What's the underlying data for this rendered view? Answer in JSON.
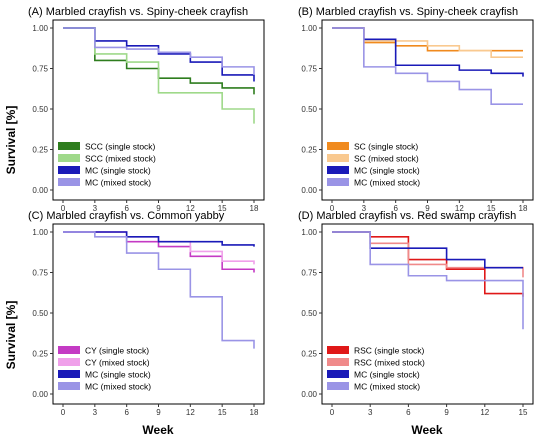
{
  "figure": {
    "ylabel": "Survival [%]",
    "xlabel": "Week"
  },
  "chart_data": [
    {
      "type": "line",
      "step": true,
      "title": "(A) Marbled crayfish vs. Spiny-cheek crayfish",
      "xlim": [
        0,
        18
      ],
      "ylim": [
        0,
        1
      ],
      "xticks": [
        0,
        3,
        6,
        9,
        12,
        15,
        18
      ],
      "yticks": [
        "0.00",
        "0.25",
        "0.50",
        "0.75",
        "1.00"
      ],
      "legend_position": "bottom-left",
      "series": [
        {
          "name": "SCC (single stock)",
          "color": "#2e7d1e",
          "x": [
            0,
            3,
            6,
            9,
            12,
            15,
            18
          ],
          "y": [
            1.0,
            0.8,
            0.75,
            0.69,
            0.66,
            0.63,
            0.59
          ]
        },
        {
          "name": "SCC (mixed stock)",
          "color": "#9fd98a",
          "x": [
            0,
            3,
            6,
            9,
            12,
            15,
            18
          ],
          "y": [
            1.0,
            0.84,
            0.79,
            0.6,
            0.6,
            0.5,
            0.41
          ]
        },
        {
          "name": "MC (single stock)",
          "color": "#1a1ab8",
          "x": [
            0,
            3,
            6,
            9,
            12,
            15,
            18
          ],
          "y": [
            1.0,
            0.92,
            0.89,
            0.84,
            0.79,
            0.71,
            0.67
          ]
        },
        {
          "name": "MC (mixed stock)",
          "color": "#9a94e6",
          "x": [
            0,
            3,
            6,
            9,
            12,
            15,
            18
          ],
          "y": [
            1.0,
            0.88,
            0.87,
            0.85,
            0.82,
            0.76,
            0.71
          ]
        }
      ]
    },
    {
      "type": "line",
      "step": true,
      "title": "(B) Marbled crayfish vs. Spiny-cheek crayfish",
      "xlim": [
        0,
        18
      ],
      "ylim": [
        0,
        1
      ],
      "xticks": [
        0,
        3,
        6,
        9,
        12,
        15,
        18
      ],
      "yticks": [
        "0.00",
        "0.25",
        "0.50",
        "0.75",
        "1.00"
      ],
      "legend_position": "bottom-left",
      "series": [
        {
          "name": "SC (single stock)",
          "color": "#f08a1e",
          "x": [
            0,
            3,
            6,
            9,
            12,
            15,
            18
          ],
          "y": [
            1.0,
            0.91,
            0.89,
            0.86,
            0.86,
            0.86,
            0.86
          ]
        },
        {
          "name": "SC (mixed stock)",
          "color": "#f9c990",
          "x": [
            0,
            3,
            6,
            9,
            12,
            15,
            18
          ],
          "y": [
            1.0,
            0.92,
            0.92,
            0.89,
            0.86,
            0.82,
            0.82
          ]
        },
        {
          "name": "MC (single stock)",
          "color": "#1a1ab8",
          "x": [
            0,
            3,
            6,
            9,
            12,
            15,
            18
          ],
          "y": [
            1.0,
            0.93,
            0.77,
            0.77,
            0.74,
            0.72,
            0.7
          ]
        },
        {
          "name": "MC (mixed stock)",
          "color": "#9a94e6",
          "x": [
            0,
            3,
            6,
            9,
            12,
            15,
            18
          ],
          "y": [
            1.0,
            0.76,
            0.72,
            0.67,
            0.62,
            0.53,
            0.53
          ]
        }
      ]
    },
    {
      "type": "line",
      "step": true,
      "title": "(C) Marbled crayfish vs. Common yabby",
      "xlim": [
        0,
        18
      ],
      "ylim": [
        0,
        1
      ],
      "xticks": [
        0,
        3,
        6,
        9,
        12,
        15,
        18
      ],
      "yticks": [
        "0.00",
        "0.25",
        "0.50",
        "0.75",
        "1.00"
      ],
      "legend_position": "bottom-left",
      "series": [
        {
          "name": "CY (single stock)",
          "color": "#c43ac4",
          "x": [
            0,
            3,
            6,
            9,
            12,
            15,
            18
          ],
          "y": [
            1.0,
            1.0,
            0.94,
            0.91,
            0.85,
            0.77,
            0.75
          ]
        },
        {
          "name": "CY (mixed stock)",
          "color": "#f0a0ea",
          "x": [
            0,
            3,
            6,
            9,
            12,
            15,
            18
          ],
          "y": [
            1.0,
            1.0,
            0.97,
            0.94,
            0.88,
            0.82,
            0.8
          ]
        },
        {
          "name": "MC (single stock)",
          "color": "#1a1ab8",
          "x": [
            0,
            3,
            6,
            9,
            12,
            15,
            18
          ],
          "y": [
            1.0,
            1.0,
            0.97,
            0.94,
            0.94,
            0.92,
            0.91
          ]
        },
        {
          "name": "MC (mixed stock)",
          "color": "#9a94e6",
          "x": [
            0,
            3,
            6,
            9,
            12,
            15,
            18
          ],
          "y": [
            1.0,
            0.97,
            0.87,
            0.77,
            0.6,
            0.33,
            0.28
          ]
        }
      ]
    },
    {
      "type": "line",
      "step": true,
      "title": "(D) Marbled crayfish vs. Red swamp crayfish",
      "xlim": [
        0,
        15
      ],
      "ylim": [
        0,
        1
      ],
      "xticks": [
        0,
        3,
        6,
        9,
        12,
        15
      ],
      "yticks": [
        "0.00",
        "0.25",
        "0.50",
        "0.75",
        "1.00"
      ],
      "legend_position": "bottom-left",
      "series": [
        {
          "name": "RSC (single stock)",
          "color": "#e01818",
          "x": [
            0,
            3,
            6,
            9,
            12,
            15
          ],
          "y": [
            1.0,
            0.97,
            0.83,
            0.77,
            0.62,
            0.6
          ]
        },
        {
          "name": "RSC (mixed stock)",
          "color": "#f08a8a",
          "x": [
            0,
            3,
            6,
            9,
            12,
            15
          ],
          "y": [
            1.0,
            0.93,
            0.8,
            0.78,
            0.78,
            0.72
          ]
        },
        {
          "name": "MC (single stock)",
          "color": "#1a1ab8",
          "x": [
            0,
            3,
            6,
            9,
            12,
            15
          ],
          "y": [
            1.0,
            0.9,
            0.9,
            0.83,
            0.78,
            0.78
          ]
        },
        {
          "name": "MC (mixed stock)",
          "color": "#9a94e6",
          "x": [
            0,
            3,
            6,
            9,
            12,
            15
          ],
          "y": [
            1.0,
            0.8,
            0.73,
            0.7,
            0.7,
            0.4
          ]
        }
      ]
    }
  ]
}
